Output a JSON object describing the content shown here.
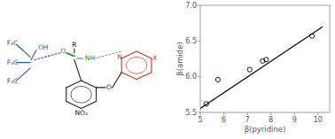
{
  "chart_data": {
    "type": "scatter",
    "xlabel": "β(pyridine)",
    "ylabel": "β(amide)",
    "annotations": [
      "F₃C",
      "F₃C",
      "F₃C",
      "OH",
      "R",
      "O",
      "NH",
      "NO₂",
      "O",
      "N",
      "X"
    ],
    "series": [
      {
        "type": "scatter",
        "color": "black",
        "marker": "circle",
        "x": [
          5.25,
          5.75,
          7.1,
          7.65,
          7.8,
          9.75
        ],
        "values": [
          5.62,
          5.96,
          6.1,
          6.22,
          6.24,
          6.57
        ]
      },
      {
        "type": "line",
        "color": "black",
        "line_style": "solid",
        "x": [
          5.0,
          10.2
        ],
        "values": [
          5.555,
          6.7
        ]
      }
    ],
    "xlim": [
      5.0,
      10.5
    ],
    "ylim": [
      5.5,
      7.0
    ],
    "xticks": [
      5,
      6,
      7,
      8,
      9,
      10
    ],
    "yticks": [
      5.5,
      {
        "value": 6.0,
        "label": "6.0"
      },
      6.5,
      {
        "value": 7.0,
        "label": "7.0"
      }
    ],
    "grid": false
  }
}
